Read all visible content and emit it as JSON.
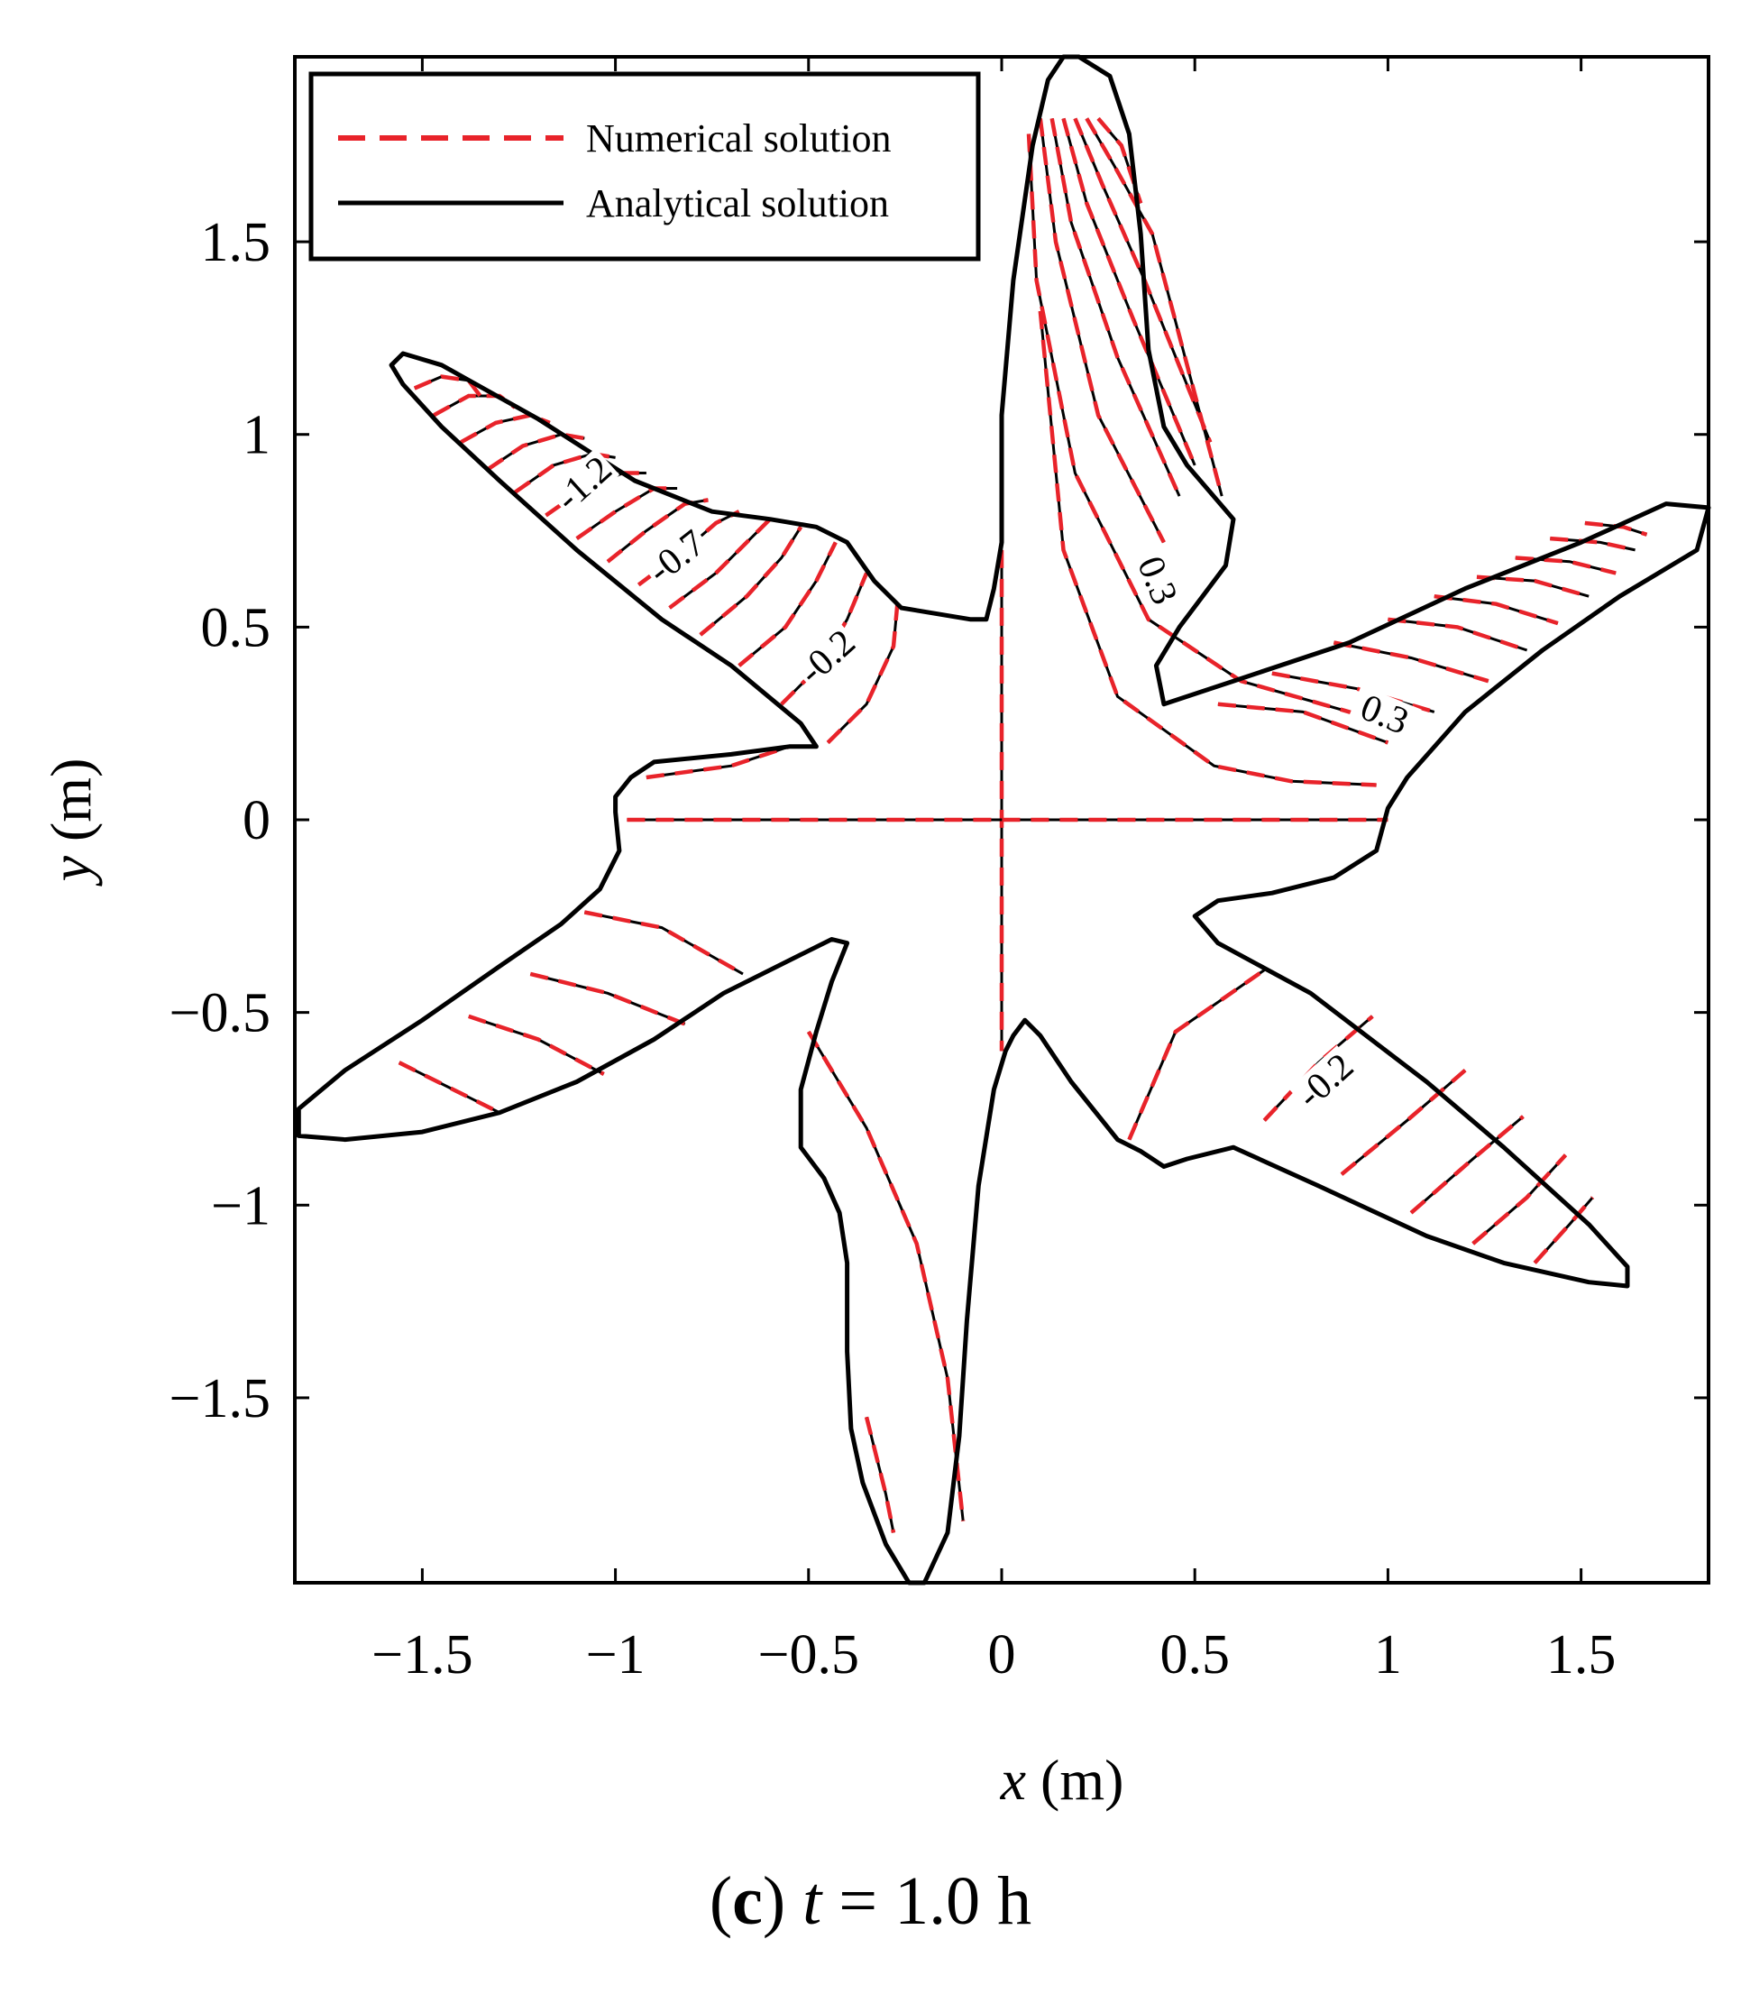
{
  "chart_data": {
    "type": "contour",
    "xlabel_var": "x",
    "xlabel_unit": "(m)",
    "ylabel_var": "y",
    "ylabel_unit": "(m)",
    "xlim": [
      -1.83,
      1.83
    ],
    "ylim": [
      -1.98,
      1.98
    ],
    "x_ticks": [
      {
        "value": -1.5,
        "label": "−1.5"
      },
      {
        "value": -1,
        "label": "−1"
      },
      {
        "value": -0.5,
        "label": "−0.5"
      },
      {
        "value": 0,
        "label": "0"
      },
      {
        "value": 0.5,
        "label": "0.5"
      },
      {
        "value": 1,
        "label": "1"
      },
      {
        "value": 1.5,
        "label": "1.5"
      }
    ],
    "y_ticks": [
      {
        "value": 1.5,
        "label": "1.5"
      },
      {
        "value": 1,
        "label": "1"
      },
      {
        "value": 0.5,
        "label": "0.5"
      },
      {
        "value": 0,
        "label": "0"
      },
      {
        "value": -0.5,
        "label": "−0.5"
      },
      {
        "value": -1,
        "label": "−1"
      },
      {
        "value": -1.5,
        "label": "−1.5"
      }
    ],
    "legend": [
      {
        "label": "Numerical solution",
        "color": "#e8232a",
        "style": "dashed"
      },
      {
        "label": "Analytical solution",
        "color": "#000000",
        "style": "solid"
      }
    ],
    "legend_position": "top-left",
    "grid": false,
    "contour_labels": [
      {
        "text": "-1.2",
        "x": -1.08,
        "y": 0.87,
        "angle": -42
      },
      {
        "text": "-0.7",
        "x": -0.84,
        "y": 0.68,
        "angle": -38
      },
      {
        "text": "-0.2",
        "x": -0.45,
        "y": 0.42,
        "angle": -42
      },
      {
        "text": "0.3",
        "x": 0.4,
        "y": 0.62,
        "angle": 68
      },
      {
        "text": "0.3",
        "x": 0.99,
        "y": 0.27,
        "angle": 22
      },
      {
        "text": "-0.2",
        "x": 0.84,
        "y": -0.68,
        "angle": -42
      }
    ],
    "domain_outline": [
      [
        0.2,
        1.98
      ],
      [
        0.28,
        1.93
      ],
      [
        0.33,
        1.78
      ],
      [
        0.36,
        1.52
      ],
      [
        0.38,
        1.22
      ],
      [
        0.42,
        1.02
      ],
      [
        0.48,
        0.92
      ],
      [
        0.54,
        0.85
      ],
      [
        0.6,
        0.78
      ],
      [
        0.58,
        0.66
      ],
      [
        0.52,
        0.58
      ],
      [
        0.46,
        0.5
      ],
      [
        0.4,
        0.4
      ],
      [
        0.42,
        0.3
      ],
      [
        0.6,
        0.36
      ],
      [
        0.9,
        0.46
      ],
      [
        1.2,
        0.6
      ],
      [
        1.5,
        0.72
      ],
      [
        1.72,
        0.82
      ],
      [
        1.83,
        0.81
      ],
      [
        1.8,
        0.7
      ],
      [
        1.6,
        0.58
      ],
      [
        1.4,
        0.44
      ],
      [
        1.2,
        0.28
      ],
      [
        1.05,
        0.11
      ],
      [
        1.0,
        0.03
      ],
      [
        0.97,
        -0.08
      ],
      [
        0.86,
        -0.15
      ],
      [
        0.7,
        -0.19
      ],
      [
        0.56,
        -0.21
      ],
      [
        0.5,
        -0.25
      ],
      [
        0.56,
        -0.32
      ],
      [
        0.8,
        -0.45
      ],
      [
        1.1,
        -0.68
      ],
      [
        1.3,
        -0.85
      ],
      [
        1.52,
        -1.05
      ],
      [
        1.62,
        -1.16
      ],
      [
        1.62,
        -1.21
      ],
      [
        1.52,
        -1.2
      ],
      [
        1.3,
        -1.15
      ],
      [
        1.1,
        -1.08
      ],
      [
        0.82,
        -0.95
      ],
      [
        0.6,
        -0.85
      ],
      [
        0.48,
        -0.88
      ],
      [
        0.42,
        -0.9
      ],
      [
        0.36,
        -0.86
      ],
      [
        0.3,
        -0.83
      ],
      [
        0.18,
        -0.68
      ],
      [
        0.1,
        -0.56
      ],
      [
        0.06,
        -0.52
      ],
      [
        0.03,
        -0.56
      ],
      [
        0.01,
        -0.6
      ],
      [
        -0.02,
        -0.7
      ],
      [
        -0.06,
        -0.95
      ],
      [
        -0.09,
        -1.3
      ],
      [
        -0.11,
        -1.6
      ],
      [
        -0.14,
        -1.85
      ],
      [
        -0.2,
        -1.98
      ],
      [
        -0.24,
        -1.98
      ],
      [
        -0.3,
        -1.88
      ],
      [
        -0.36,
        -1.72
      ],
      [
        -0.39,
        -1.58
      ],
      [
        -0.4,
        -1.38
      ],
      [
        -0.4,
        -1.15
      ],
      [
        -0.42,
        -1.02
      ],
      [
        -0.46,
        -0.93
      ],
      [
        -0.52,
        -0.85
      ],
      [
        -0.52,
        -0.7
      ],
      [
        -0.48,
        -0.55
      ],
      [
        -0.44,
        -0.42
      ],
      [
        -0.4,
        -0.32
      ],
      [
        -0.44,
        -0.31
      ],
      [
        -0.52,
        -0.35
      ],
      [
        -0.72,
        -0.45
      ],
      [
        -0.9,
        -0.57
      ],
      [
        -1.1,
        -0.68
      ],
      [
        -1.3,
        -0.76
      ],
      [
        -1.5,
        -0.81
      ],
      [
        -1.7,
        -0.83
      ],
      [
        -1.82,
        -0.82
      ],
      [
        -1.82,
        -0.75
      ],
      [
        -1.7,
        -0.65
      ],
      [
        -1.5,
        -0.52
      ],
      [
        -1.3,
        -0.38
      ],
      [
        -1.14,
        -0.27
      ],
      [
        -1.04,
        -0.18
      ],
      [
        -0.99,
        -0.08
      ],
      [
        -1.0,
        0.02
      ],
      [
        -1.0,
        0.06
      ],
      [
        -0.96,
        0.11
      ],
      [
        -0.9,
        0.15
      ],
      [
        -0.7,
        0.17
      ],
      [
        -0.55,
        0.19
      ],
      [
        -0.48,
        0.19
      ],
      [
        -0.52,
        0.25
      ],
      [
        -0.7,
        0.4
      ],
      [
        -0.88,
        0.52
      ],
      [
        -1.1,
        0.7
      ],
      [
        -1.3,
        0.88
      ],
      [
        -1.45,
        1.02
      ],
      [
        -1.55,
        1.13
      ],
      [
        -1.58,
        1.18
      ],
      [
        -1.55,
        1.21
      ],
      [
        -1.45,
        1.18
      ],
      [
        -1.2,
        1.04
      ],
      [
        -0.95,
        0.88
      ],
      [
        -0.75,
        0.8
      ],
      [
        -0.6,
        0.78
      ],
      [
        -0.48,
        0.76
      ],
      [
        -0.4,
        0.72
      ],
      [
        -0.33,
        0.62
      ],
      [
        -0.26,
        0.55
      ],
      [
        -0.08,
        0.52
      ],
      [
        -0.04,
        0.52
      ],
      [
        -0.02,
        0.6
      ],
      [
        0.0,
        0.72
      ],
      [
        0.0,
        1.05
      ],
      [
        0.03,
        1.4
      ],
      [
        0.08,
        1.75
      ],
      [
        0.12,
        1.92
      ],
      [
        0.16,
        1.98
      ]
    ],
    "contour_lines": [
      [
        [
          0.0,
          0.7
        ],
        [
          0.0,
          -0.6
        ]
      ],
      [
        [
          -0.97,
          0.0
        ],
        [
          1.0,
          0.0
        ]
      ],
      [
        [
          -0.92,
          0.11
        ],
        [
          -0.7,
          0.14
        ],
        [
          -0.55,
          0.19
        ]
      ],
      [
        [
          -0.45,
          0.2
        ],
        [
          -0.35,
          0.3
        ],
        [
          -0.28,
          0.45
        ],
        [
          -0.27,
          0.56
        ]
      ],
      [
        [
          -0.57,
          0.3
        ],
        [
          -0.47,
          0.4
        ],
        [
          -0.4,
          0.52
        ],
        [
          -0.35,
          0.64
        ]
      ],
      [
        [
          -0.68,
          0.4
        ],
        [
          -0.56,
          0.5
        ],
        [
          -0.48,
          0.62
        ],
        [
          -0.43,
          0.72
        ]
      ],
      [
        [
          -0.78,
          0.48
        ],
        [
          -0.66,
          0.58
        ],
        [
          -0.57,
          0.68
        ],
        [
          -0.52,
          0.76
        ]
      ],
      [
        [
          -0.86,
          0.55
        ],
        [
          -0.74,
          0.64
        ],
        [
          -0.66,
          0.72
        ],
        [
          -0.6,
          0.78
        ]
      ],
      [
        [
          -0.94,
          0.61
        ],
        [
          -0.82,
          0.7
        ],
        [
          -0.74,
          0.77
        ],
        [
          -0.68,
          0.8
        ]
      ],
      [
        [
          -1.02,
          0.67
        ],
        [
          -0.92,
          0.75
        ],
        [
          -0.82,
          0.82
        ],
        [
          -0.76,
          0.83
        ]
      ],
      [
        [
          -1.1,
          0.73
        ],
        [
          -1.0,
          0.8
        ],
        [
          -0.9,
          0.86
        ],
        [
          -0.84,
          0.86
        ]
      ],
      [
        [
          -1.18,
          0.79
        ],
        [
          -1.08,
          0.86
        ],
        [
          -0.98,
          0.9
        ],
        [
          -0.92,
          0.9
        ]
      ],
      [
        [
          -1.26,
          0.85
        ],
        [
          -1.16,
          0.92
        ],
        [
          -1.06,
          0.95
        ],
        [
          -1.0,
          0.94
        ]
      ],
      [
        [
          -1.33,
          0.91
        ],
        [
          -1.24,
          0.97
        ],
        [
          -1.14,
          1.0
        ],
        [
          -1.08,
          0.99
        ]
      ],
      [
        [
          -1.4,
          0.98
        ],
        [
          -1.31,
          1.03
        ],
        [
          -1.22,
          1.05
        ],
        [
          -1.17,
          1.03
        ]
      ],
      [
        [
          -1.47,
          1.05
        ],
        [
          -1.38,
          1.1
        ],
        [
          -1.3,
          1.1
        ],
        [
          -1.26,
          1.07
        ]
      ],
      [
        [
          -1.52,
          1.12
        ],
        [
          -1.45,
          1.15
        ],
        [
          -1.38,
          1.14
        ],
        [
          -1.35,
          1.1
        ]
      ],
      [
        [
          -1.08,
          -0.24
        ],
        [
          -0.88,
          -0.28
        ],
        [
          -0.67,
          -0.4
        ]
      ],
      [
        [
          -1.22,
          -0.4
        ],
        [
          -1.02,
          -0.45
        ],
        [
          -0.82,
          -0.53
        ]
      ],
      [
        [
          -1.38,
          -0.51
        ],
        [
          -1.2,
          -0.57
        ],
        [
          -1.03,
          -0.66
        ]
      ],
      [
        [
          -1.56,
          -0.63
        ],
        [
          -1.42,
          -0.7
        ],
        [
          -1.3,
          -0.76
        ]
      ],
      [
        [
          -0.5,
          -0.55
        ],
        [
          -0.35,
          -0.8
        ],
        [
          -0.22,
          -1.1
        ],
        [
          -0.14,
          -1.45
        ],
        [
          -0.1,
          -1.82
        ]
      ],
      [
        [
          -0.35,
          -1.55
        ],
        [
          -0.3,
          -1.75
        ],
        [
          -0.28,
          -1.85
        ]
      ],
      [
        [
          0.33,
          -0.83
        ],
        [
          0.45,
          -0.55
        ],
        [
          0.68,
          -0.39
        ]
      ],
      [
        [
          0.68,
          -0.78
        ],
        [
          0.82,
          -0.63
        ],
        [
          0.96,
          -0.51
        ]
      ],
      [
        [
          0.88,
          -0.92
        ],
        [
          1.05,
          -0.78
        ],
        [
          1.2,
          -0.65
        ]
      ],
      [
        [
          1.06,
          -1.02
        ],
        [
          1.22,
          -0.88
        ],
        [
          1.35,
          -0.77
        ]
      ],
      [
        [
          1.22,
          -1.1
        ],
        [
          1.36,
          -0.98
        ],
        [
          1.46,
          -0.87
        ]
      ],
      [
        [
          1.38,
          -1.15
        ],
        [
          1.47,
          -1.05
        ],
        [
          1.53,
          -0.98
        ]
      ],
      [
        [
          0.1,
          1.32
        ],
        [
          0.16,
          0.7
        ],
        [
          0.3,
          0.32
        ],
        [
          0.55,
          0.14
        ],
        [
          0.75,
          0.1
        ],
        [
          0.97,
          0.09
        ]
      ],
      [
        [
          0.07,
          1.78
        ],
        [
          0.09,
          1.4
        ],
        [
          0.19,
          0.9
        ],
        [
          0.38,
          0.52
        ],
        [
          0.62,
          0.36
        ],
        [
          0.9,
          0.28
        ],
        [
          1.05,
          0.22
        ]
      ],
      [
        [
          0.1,
          1.82
        ],
        [
          0.14,
          1.5
        ],
        [
          0.25,
          1.05
        ],
        [
          0.42,
          0.72
        ]
      ],
      [
        [
          0.13,
          1.82
        ],
        [
          0.18,
          1.55
        ],
        [
          0.3,
          1.2
        ],
        [
          0.46,
          0.84
        ]
      ],
      [
        [
          0.16,
          1.82
        ],
        [
          0.22,
          1.6
        ],
        [
          0.34,
          1.3
        ],
        [
          0.5,
          0.92
        ]
      ],
      [
        [
          0.19,
          1.82
        ],
        [
          0.26,
          1.65
        ],
        [
          0.37,
          1.4
        ],
        [
          0.54,
          0.98
        ]
      ],
      [
        [
          0.22,
          1.82
        ],
        [
          0.29,
          1.7
        ],
        [
          0.39,
          1.52
        ],
        [
          0.57,
          0.84
        ]
      ],
      [
        [
          0.25,
          1.82
        ],
        [
          0.31,
          1.75
        ],
        [
          0.36,
          1.6
        ]
      ],
      [
        [
          0.56,
          0.3
        ],
        [
          0.78,
          0.28
        ],
        [
          1.0,
          0.2
        ]
      ],
      [
        [
          0.7,
          0.38
        ],
        [
          0.92,
          0.34
        ],
        [
          1.12,
          0.28
        ]
      ],
      [
        [
          0.86,
          0.46
        ],
        [
          1.06,
          0.42
        ],
        [
          1.26,
          0.36
        ]
      ],
      [
        [
          1.0,
          0.52
        ],
        [
          1.18,
          0.5
        ],
        [
          1.36,
          0.44
        ]
      ],
      [
        [
          1.12,
          0.58
        ],
        [
          1.28,
          0.56
        ],
        [
          1.44,
          0.51
        ]
      ],
      [
        [
          1.23,
          0.63
        ],
        [
          1.38,
          0.62
        ],
        [
          1.52,
          0.58
        ]
      ],
      [
        [
          1.33,
          0.68
        ],
        [
          1.47,
          0.67
        ],
        [
          1.59,
          0.64
        ]
      ],
      [
        [
          1.42,
          0.73
        ],
        [
          1.55,
          0.72
        ],
        [
          1.64,
          0.7
        ]
      ],
      [
        [
          1.51,
          0.77
        ],
        [
          1.61,
          0.76
        ],
        [
          1.67,
          0.74
        ]
      ]
    ]
  },
  "caption": {
    "label": "(c)",
    "var": "t",
    "rest": "= 1.0 h"
  }
}
